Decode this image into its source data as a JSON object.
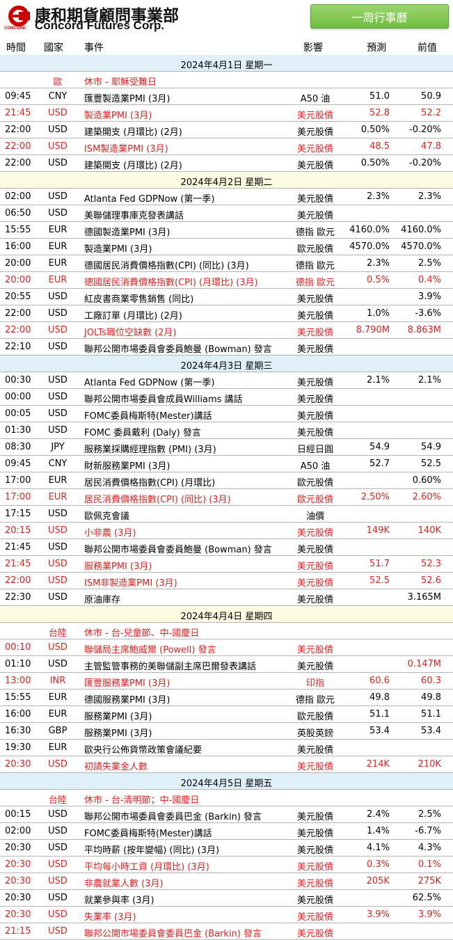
{
  "header": {
    "company_cn": "康和期貨顧問事業部",
    "company_en": "Concord Futures Corp.",
    "logo_text": "CONCORD",
    "week_button": "一周行事曆"
  },
  "columns": {
    "time": "時間",
    "country": "國家",
    "event": "事件",
    "impact": "影響",
    "forecast": "預測",
    "previous": "前值"
  },
  "rows": [
    {
      "type": "date",
      "label": "2024年4月1日 星期一",
      "style": "blue"
    },
    {
      "type": "event",
      "red": true,
      "time": "",
      "country": "歐",
      "event": "休市 - 耶穌受難日",
      "impact": "",
      "forecast": "",
      "previous": ""
    },
    {
      "type": "event",
      "red": false,
      "time": "09:45",
      "country": "CNY",
      "event": "匯豐製造業PMI (3月)",
      "impact": "A50 油",
      "forecast": "51.0",
      "previous": "50.9"
    },
    {
      "type": "event",
      "red": true,
      "time": "21:45",
      "country": "USD",
      "event": "製造業PMI (3月)",
      "impact": "美元股債",
      "forecast": "52.8",
      "previous": "52.2"
    },
    {
      "type": "event",
      "red": false,
      "time": "22:00",
      "country": "USD",
      "event": "建築開支 (月環比) (2月)",
      "impact": "美元股債",
      "forecast": "0.50%",
      "previous": "-0.20%"
    },
    {
      "type": "event",
      "red": true,
      "time": "22:00",
      "country": "USD",
      "event": "ISM製造業PMI (3月)",
      "impact": "美元股債",
      "forecast": "48.5",
      "previous": "47.8"
    },
    {
      "type": "event",
      "red": false,
      "time": "22:00",
      "country": "USD",
      "event": "建築開支 (月環比) (2月)",
      "impact": "美元股債",
      "forecast": "0.50%",
      "previous": "-0.20%"
    },
    {
      "type": "date",
      "label": "2024年4月2日 星期二",
      "style": "yellow"
    },
    {
      "type": "event",
      "red": false,
      "time": "02:00",
      "country": "USD",
      "event": "Atlanta Fed GDPNow (第一季)",
      "impact": "美元股債",
      "forecast": "2.3%",
      "previous": "2.3%"
    },
    {
      "type": "event",
      "red": false,
      "time": "06:50",
      "country": "USD",
      "event": "美聯儲理事庫克發表講話",
      "impact": "美元股債",
      "forecast": "",
      "previous": ""
    },
    {
      "type": "event",
      "red": false,
      "time": "15:55",
      "country": "EUR",
      "event": "德國製造業PMI (3月)",
      "impact": "德指 歐元",
      "forecast": "4160.0%",
      "previous": "4160.0%"
    },
    {
      "type": "event",
      "red": false,
      "time": "16:00",
      "country": "EUR",
      "event": "製造業PMI (3月)",
      "impact": "歐元股債",
      "forecast": "4570.0%",
      "previous": "4570.0%"
    },
    {
      "type": "event",
      "red": false,
      "time": "20:00",
      "country": "EUR",
      "event": "德國居民消費價格指數(CPI) (同比) (3月)",
      "impact": "德指 歐元",
      "forecast": "2.3%",
      "previous": "2.5%"
    },
    {
      "type": "event",
      "red": true,
      "time": "20:00",
      "country": "EUR",
      "event": "德國居民消費價格指數(CPI) (月環比) (3月)",
      "impact": "德指 歐元",
      "forecast": "0.5%",
      "previous": "0.4%"
    },
    {
      "type": "event",
      "red": false,
      "time": "20:55",
      "country": "USD",
      "event": "紅皮書商業零售銷售 (同比)",
      "impact": "美元股債",
      "forecast": "",
      "previous": "3.9%"
    },
    {
      "type": "event",
      "red": false,
      "time": "22:00",
      "country": "USD",
      "event": "工廠訂單 (月環比) (2月)",
      "impact": "美元股債",
      "forecast": "1.0%",
      "previous": "-3.6%"
    },
    {
      "type": "event",
      "red": true,
      "time": "22:00",
      "country": "USD",
      "event": "JOLTs職位空缺數 (2月)",
      "impact": "美元股債",
      "forecast": "8.790M",
      "previous": "8.863M"
    },
    {
      "type": "event",
      "red": false,
      "time": "22:10",
      "country": "USD",
      "event": "聯邦公開市場委員會委員鮑曼 (Bowman) 發言",
      "impact": "美元股債",
      "forecast": "",
      "previous": ""
    },
    {
      "type": "date",
      "label": "2024年4月3日 星期三",
      "style": "blue"
    },
    {
      "type": "event",
      "red": false,
      "time": "00:30",
      "country": "USD",
      "event": "Atlanta Fed GDPNow (第一季)",
      "impact": "美元股債",
      "forecast": "2.1%",
      "previous": "2.1%"
    },
    {
      "type": "event",
      "red": false,
      "time": "00:00",
      "country": "USD",
      "event": "聯邦公開市場委員會成員Williams 講話",
      "impact": "美元股債",
      "forecast": "",
      "previous": ""
    },
    {
      "type": "event",
      "red": false,
      "time": "00:05",
      "country": "USD",
      "event": "FOMC委員梅斯特(Mester)講話",
      "impact": "美元股債",
      "forecast": "",
      "previous": ""
    },
    {
      "type": "event",
      "red": false,
      "time": "01:30",
      "country": "USD",
      "event": "FOMC 委員戴利 (Daly) 發言",
      "impact": "美元股債",
      "forecast": "",
      "previous": ""
    },
    {
      "type": "event",
      "red": false,
      "time": "08:30",
      "country": "JPY",
      "event": "服務業採購經理指數 (PMI) (3月)",
      "impact": "日經日圓",
      "forecast": "54.9",
      "previous": "54.9"
    },
    {
      "type": "event",
      "red": false,
      "time": "09:45",
      "country": "CNY",
      "event": "財新服務業PMI (3月)",
      "impact": "A50 油",
      "forecast": "52.7",
      "previous": "52.5"
    },
    {
      "type": "event",
      "red": false,
      "time": "17:00",
      "country": "EUR",
      "event": "居民消費價格指數(CPI) (月環比)",
      "impact": "歐元股債",
      "forecast": "",
      "previous": "0.60%"
    },
    {
      "type": "event",
      "red": true,
      "time": "17:00",
      "country": "EUR",
      "event": "居民消費價格指數(CPI) (同比) (3月)",
      "impact": "歐元股債",
      "forecast": "2.50%",
      "previous": "2.60%"
    },
    {
      "type": "event",
      "red": false,
      "time": "17:15",
      "country": "USD",
      "event": "歐佩克會議",
      "impact": "油價",
      "forecast": "",
      "previous": ""
    },
    {
      "type": "event",
      "red": true,
      "time": "20:15",
      "country": "USD",
      "event": "小非農 (3月)",
      "impact": "美元股債",
      "forecast": "149K",
      "previous": "140K"
    },
    {
      "type": "event",
      "red": false,
      "time": "21:45",
      "country": "USD",
      "event": "聯邦公開市場委員會委員鮑曼 (Bowman) 發言",
      "impact": "美元股債",
      "forecast": "",
      "previous": ""
    },
    {
      "type": "event",
      "red": true,
      "time": "21:45",
      "country": "USD",
      "event": "服務業PMI (3月)",
      "impact": "美元股債",
      "forecast": "51.7",
      "previous": "52.3"
    },
    {
      "type": "event",
      "red": true,
      "time": "22:00",
      "country": "USD",
      "event": "ISM非製造業PMI (3月)",
      "impact": "美元股債",
      "forecast": "52.5",
      "previous": "52.6"
    },
    {
      "type": "event",
      "red": false,
      "time": "22:30",
      "country": "USD",
      "event": "原油庫存",
      "impact": "美元股債",
      "forecast": "",
      "previous": "3.165M"
    },
    {
      "type": "date",
      "label": "2024年4月4日 星期四",
      "style": "yellow"
    },
    {
      "type": "event",
      "red": true,
      "time": "",
      "country": "台陸",
      "event": "休市 - 台-兒童節、中-國慶日",
      "impact": "",
      "forecast": "",
      "previous": ""
    },
    {
      "type": "event",
      "red": true,
      "time": "00:10",
      "country": "USD",
      "event": "聯儲局主席鮑威爾 (Powell) 發言",
      "impact": "美元股債",
      "forecast": "",
      "previous": ""
    },
    {
      "type": "event",
      "red": false,
      "time": "01:10",
      "country": "USD",
      "event": "主管監管事務的美聯儲副主席巴爾發表講話",
      "impact": "美元股債",
      "forecast": "",
      "previous": "0.147M",
      "prev_red": true
    },
    {
      "type": "event",
      "red": true,
      "time": "13:00",
      "country": "INR",
      "event": "匯豐服務業PMI (3月)",
      "impact": "印指",
      "forecast": "60.6",
      "previous": "60.3"
    },
    {
      "type": "event",
      "red": false,
      "time": "15:55",
      "country": "EUR",
      "event": "德國服務業PMI (3月)",
      "impact": "德指 歐元",
      "forecast": "49.8",
      "previous": "49.8"
    },
    {
      "type": "event",
      "red": false,
      "time": "16:00",
      "country": "EUR",
      "event": "服務業PMI (3月)",
      "impact": "歐元股債",
      "forecast": "51.1",
      "previous": "51.1"
    },
    {
      "type": "event",
      "red": false,
      "time": "16:30",
      "country": "GBP",
      "event": "服務業PMI (3月)",
      "impact": "英股英鎊",
      "forecast": "53.4",
      "previous": "53.4"
    },
    {
      "type": "event",
      "red": false,
      "time": "19:30",
      "country": "EUR",
      "event": "歐央行公佈貨幣政策會議紀要",
      "impact": "美元股債",
      "forecast": "",
      "previous": ""
    },
    {
      "type": "event",
      "red": true,
      "time": "20:30",
      "country": "USD",
      "event": "初請失業金人數",
      "impact": "美元股債",
      "forecast": "214K",
      "previous": "210K"
    },
    {
      "type": "date",
      "label": "2024年4月5日 星期五",
      "style": "blue"
    },
    {
      "type": "event",
      "red": true,
      "time": "",
      "country": "台陸",
      "event": "休市 - 台-清明節；中-國慶日",
      "impact": "",
      "forecast": "",
      "previous": ""
    },
    {
      "type": "event",
      "red": false,
      "time": "00:15",
      "country": "USD",
      "event": "聯邦公開市場委員會委員巴金 (Barkin) 發言",
      "impact": "美元股債",
      "forecast": "2.4%",
      "previous": "2.5%"
    },
    {
      "type": "event",
      "red": false,
      "time": "02:00",
      "country": "USD",
      "event": "FOMC委員梅斯特(Mester)講話",
      "impact": "美元股債",
      "forecast": "1.4%",
      "previous": "-6.7%"
    },
    {
      "type": "event",
      "red": false,
      "time": "20:30",
      "country": "USD",
      "event": "平均時薪 (按年變幅) (同比) (3月)",
      "impact": "美元股債",
      "forecast": "4.1%",
      "previous": "4.3%"
    },
    {
      "type": "event",
      "red": true,
      "time": "20:30",
      "country": "USD",
      "event": "平均每小時工資 (月環比) (3月)",
      "impact": "美元股債",
      "forecast": "0.3%",
      "previous": "0.1%"
    },
    {
      "type": "event",
      "red": true,
      "time": "20:30",
      "country": "USD",
      "event": "非農就業人數 (3月)",
      "impact": "美元股債",
      "forecast": "205K",
      "previous": "275K"
    },
    {
      "type": "event",
      "red": false,
      "time": "20:30",
      "country": "USD",
      "event": "就業參與率 (3月)",
      "impact": "美元股債",
      "forecast": "",
      "previous": "62.5%"
    },
    {
      "type": "event",
      "red": true,
      "time": "20:30",
      "country": "USD",
      "event": "失業率 (3月)",
      "impact": "美元股債",
      "forecast": "3.9%",
      "previous": "3.9%"
    },
    {
      "type": "event",
      "red": true,
      "time": "21:15",
      "country": "USD",
      "event": "聯邦公開市場委員會委員巴金 (Barkin) 發言",
      "impact": "美元股債",
      "forecast": "",
      "previous": ""
    }
  ],
  "colors": {
    "red_text": "#e02020",
    "date_blue": "#dff0f6",
    "date_yellow": "#fdfbe0",
    "button_green": "#6fbd3f",
    "logo_red": "#cc0000"
  }
}
